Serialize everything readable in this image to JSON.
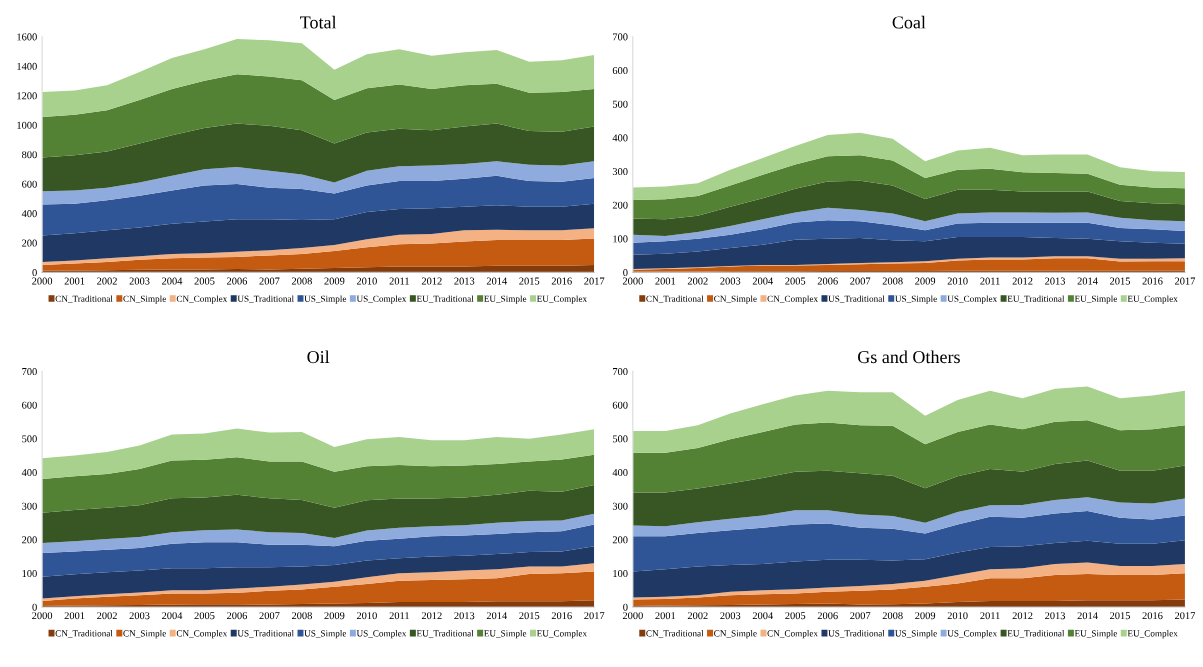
{
  "chart_data": [
    {
      "type": "area",
      "title": "Total",
      "stacked": true,
      "legend": "bottom",
      "grid": false,
      "categories": [
        "2000",
        "2001",
        "2002",
        "2003",
        "2004",
        "2005",
        "2006",
        "2007",
        "2008",
        "2009",
        "2010",
        "2011",
        "2012",
        "2013",
        "2014",
        "2015",
        "2016",
        "2017"
      ],
      "ylim": [
        0,
        1600
      ],
      "yticks": [
        0,
        200,
        400,
        600,
        800,
        1000,
        1200,
        1400,
        1600
      ],
      "series": [
        {
          "name": "CN_Traditional",
          "color": "#843c0c",
          "values": [
            10,
            12,
            15,
            18,
            20,
            20,
            22,
            20,
            25,
            30,
            35,
            40,
            40,
            40,
            45,
            45,
            45,
            50
          ]
        },
        {
          "name": "CN_Simple",
          "color": "#c55a11",
          "values": [
            40,
            48,
            55,
            67,
            75,
            80,
            83,
            95,
            100,
            115,
            135,
            150,
            155,
            170,
            175,
            175,
            175,
            180
          ]
        },
        {
          "name": "CN_Complex",
          "color": "#f4b183",
          "values": [
            20,
            20,
            25,
            25,
            30,
            30,
            35,
            35,
            40,
            40,
            55,
            65,
            65,
            75,
            70,
            65,
            65,
            70
          ]
        },
        {
          "name": "US_Traditional",
          "color": "#203864",
          "values": [
            180,
            185,
            190,
            195,
            205,
            215,
            220,
            210,
            190,
            175,
            185,
            175,
            175,
            160,
            165,
            160,
            160,
            165
          ]
        },
        {
          "name": "US_Simple",
          "color": "#2f5597",
          "values": [
            210,
            200,
            205,
            215,
            225,
            245,
            240,
            215,
            210,
            175,
            180,
            190,
            185,
            190,
            200,
            175,
            170,
            175
          ]
        },
        {
          "name": "US_Complex",
          "color": "#8faadc",
          "values": [
            90,
            90,
            85,
            90,
            100,
            110,
            115,
            115,
            100,
            75,
            100,
            100,
            105,
            100,
            100,
            110,
            110,
            115
          ]
        },
        {
          "name": "EU_Traditional",
          "color": "#375623",
          "values": [
            230,
            240,
            245,
            265,
            275,
            280,
            295,
            305,
            300,
            265,
            260,
            255,
            240,
            255,
            255,
            230,
            230,
            235
          ]
        },
        {
          "name": "EU_Simple",
          "color": "#548235",
          "values": [
            275,
            275,
            280,
            295,
            315,
            320,
            335,
            335,
            340,
            295,
            300,
            300,
            280,
            280,
            270,
            260,
            270,
            255
          ]
        },
        {
          "name": "EU_Complex",
          "color": "#a9d18e",
          "values": [
            170,
            165,
            170,
            190,
            210,
            215,
            240,
            245,
            250,
            205,
            230,
            240,
            225,
            225,
            230,
            210,
            215,
            230
          ]
        }
      ]
    },
    {
      "type": "area",
      "title": "Coal",
      "stacked": true,
      "legend": "bottom",
      "grid": false,
      "categories": [
        "2000",
        "2001",
        "2002",
        "2003",
        "2004",
        "2005",
        "2006",
        "2007",
        "2008",
        "2009",
        "2010",
        "2011",
        "2012",
        "2013",
        "2014",
        "2015",
        "2016",
        "2017"
      ],
      "ylim": [
        0,
        700
      ],
      "yticks": [
        0,
        100,
        200,
        300,
        400,
        500,
        600,
        700
      ],
      "series": [
        {
          "name": "CN_Traditional",
          "color": "#843c0c",
          "values": [
            2,
            2,
            2,
            3,
            3,
            3,
            4,
            4,
            4,
            4,
            5,
            5,
            5,
            5,
            5,
            5,
            5,
            5
          ]
        },
        {
          "name": "CN_Simple",
          "color": "#c55a11",
          "values": [
            6,
            8,
            11,
            14,
            17,
            17,
            18,
            20,
            22,
            24,
            30,
            33,
            33,
            37,
            37,
            27,
            28,
            28
          ]
        },
        {
          "name": "CN_Complex",
          "color": "#f4b183",
          "values": [
            2,
            2,
            2,
            2,
            2,
            2,
            3,
            4,
            4,
            5,
            5,
            6,
            6,
            6,
            6,
            8,
            7,
            9
          ]
        },
        {
          "name": "US_Traditional",
          "color": "#203864",
          "values": [
            42,
            43,
            47,
            53,
            60,
            75,
            75,
            74,
            65,
            59,
            65,
            61,
            61,
            54,
            52,
            52,
            48,
            43
          ]
        },
        {
          "name": "US_Simple",
          "color": "#2f5597",
          "values": [
            36,
            37,
            38,
            40,
            46,
            51,
            55,
            50,
            45,
            33,
            40,
            42,
            42,
            45,
            47,
            40,
            40,
            38
          ]
        },
        {
          "name": "US_Complex",
          "color": "#8faadc",
          "values": [
            24,
            16,
            20,
            26,
            30,
            30,
            37,
            33,
            35,
            27,
            30,
            31,
            31,
            30,
            31,
            30,
            27,
            29
          ]
        },
        {
          "name": "EU_Traditional",
          "color": "#375623",
          "values": [
            48,
            50,
            48,
            57,
            62,
            70,
            78,
            87,
            83,
            66,
            70,
            67,
            62,
            63,
            62,
            50,
            50,
            50
          ]
        },
        {
          "name": "EU_Simple",
          "color": "#548235",
          "values": [
            55,
            59,
            59,
            63,
            70,
            72,
            75,
            76,
            74,
            62,
            60,
            63,
            57,
            55,
            53,
            48,
            47,
            48
          ]
        },
        {
          "name": "EU_Complex",
          "color": "#a9d18e",
          "values": [
            37,
            38,
            38,
            47,
            50,
            55,
            63,
            67,
            65,
            50,
            57,
            62,
            51,
            55,
            57,
            52,
            48,
            48
          ]
        }
      ]
    },
    {
      "type": "area",
      "title": "Oil",
      "stacked": true,
      "legend": "bottom",
      "grid": false,
      "categories": [
        "2000",
        "2001",
        "2002",
        "2003",
        "2004",
        "2005",
        "2006",
        "2007",
        "2008",
        "2009",
        "2010",
        "2011",
        "2012",
        "2013",
        "2014",
        "2015",
        "2016",
        "2017"
      ],
      "ylim": [
        0,
        700
      ],
      "yticks": [
        0,
        100,
        200,
        300,
        400,
        500,
        600,
        700
      ],
      "series": [
        {
          "name": "CN_Traditional",
          "color": "#843c0c",
          "values": [
            3,
            4,
            5,
            6,
            7,
            8,
            8,
            7,
            9,
            10,
            12,
            15,
            15,
            15,
            17,
            17,
            17,
            20
          ]
        },
        {
          "name": "CN_Simple",
          "color": "#c55a11",
          "values": [
            15,
            21,
            25,
            29,
            33,
            32,
            34,
            41,
            43,
            50,
            56,
            63,
            65,
            67,
            68,
            81,
            83,
            85
          ]
        },
        {
          "name": "CN_Complex",
          "color": "#f4b183",
          "values": [
            7,
            7,
            8,
            8,
            10,
            10,
            13,
            12,
            15,
            15,
            20,
            22,
            23,
            26,
            27,
            22,
            20,
            25
          ]
        },
        {
          "name": "US_Traditional",
          "color": "#203864",
          "values": [
            65,
            65,
            65,
            65,
            65,
            65,
            63,
            58,
            53,
            50,
            50,
            45,
            47,
            44,
            45,
            43,
            45,
            50
          ]
        },
        {
          "name": "US_Simple",
          "color": "#2f5597",
          "values": [
            70,
            68,
            67,
            67,
            73,
            77,
            74,
            67,
            65,
            55,
            59,
            58,
            60,
            60,
            60,
            59,
            60,
            65
          ]
        },
        {
          "name": "US_Complex",
          "color": "#8faadc",
          "values": [
            30,
            30,
            32,
            33,
            34,
            36,
            38,
            37,
            35,
            25,
            30,
            32,
            30,
            31,
            33,
            33,
            32,
            32
          ]
        },
        {
          "name": "EU_Traditional",
          "color": "#375623",
          "values": [
            90,
            93,
            93,
            94,
            101,
            97,
            103,
            101,
            98,
            90,
            90,
            87,
            82,
            82,
            83,
            90,
            85,
            85
          ]
        },
        {
          "name": "EU_Simple",
          "color": "#548235",
          "values": [
            100,
            100,
            100,
            108,
            112,
            112,
            112,
            109,
            114,
            107,
            101,
            100,
            96,
            95,
            92,
            87,
            96,
            90
          ]
        },
        {
          "name": "EU_Complex",
          "color": "#a9d18e",
          "values": [
            62,
            62,
            65,
            70,
            77,
            78,
            85,
            86,
            88,
            73,
            80,
            83,
            77,
            75,
            80,
            68,
            74,
            76
          ]
        }
      ]
    },
    {
      "type": "area",
      "title": "Gs and Others",
      "stacked": true,
      "legend": "bottom",
      "grid": false,
      "categories": [
        "2000",
        "2001",
        "2002",
        "2003",
        "2004",
        "2005",
        "2006",
        "2007",
        "2008",
        "2009",
        "2010",
        "2011",
        "2012",
        "2013",
        "2014",
        "2015",
        "2016",
        "2017"
      ],
      "ylim": [
        0,
        700
      ],
      "yticks": [
        0,
        100,
        200,
        300,
        400,
        500,
        600,
        700
      ],
      "series": [
        {
          "name": "CN_Traditional",
          "color": "#843c0c",
          "values": [
            3,
            4,
            5,
            6,
            7,
            9,
            10,
            7,
            8,
            10,
            15,
            18,
            18,
            18,
            20,
            20,
            20,
            22
          ]
        },
        {
          "name": "CN_Simple",
          "color": "#c55a11",
          "values": [
            19,
            20,
            23,
            29,
            31,
            31,
            35,
            41,
            44,
            50,
            55,
            67,
            67,
            77,
            78,
            75,
            75,
            78
          ]
        },
        {
          "name": "CN_Complex",
          "color": "#f4b183",
          "values": [
            6,
            6,
            7,
            10,
            12,
            13,
            13,
            14,
            16,
            18,
            25,
            27,
            30,
            33,
            34,
            27,
            27,
            28
          ]
        },
        {
          "name": "US_Traditional",
          "color": "#203864",
          "values": [
            77,
            82,
            85,
            80,
            78,
            82,
            82,
            78,
            70,
            64,
            67,
            66,
            65,
            62,
            65,
            66,
            66,
            70
          ]
        },
        {
          "name": "US_Simple",
          "color": "#2f5597",
          "values": [
            105,
            98,
            100,
            103,
            107,
            110,
            108,
            95,
            94,
            76,
            83,
            90,
            85,
            88,
            88,
            77,
            72,
            74
          ]
        },
        {
          "name": "US_Complex",
          "color": "#8faadc",
          "values": [
            32,
            30,
            32,
            34,
            37,
            42,
            39,
            40,
            38,
            32,
            37,
            34,
            38,
            40,
            41,
            45,
            47,
            50
          ]
        },
        {
          "name": "EU_Traditional",
          "color": "#375623",
          "values": [
            98,
            100,
            100,
            105,
            111,
            115,
            118,
            122,
            120,
            103,
            106,
            108,
            99,
            107,
            109,
            95,
            98,
            98
          ]
        },
        {
          "name": "EU_Simple",
          "color": "#548235",
          "values": [
            118,
            118,
            120,
            131,
            137,
            140,
            143,
            143,
            148,
            130,
            132,
            132,
            126,
            125,
            120,
            120,
            123,
            120
          ]
        },
        {
          "name": "EU_Complex",
          "color": "#a9d18e",
          "values": [
            65,
            65,
            68,
            77,
            82,
            86,
            94,
            98,
            100,
            85,
            95,
            100,
            92,
            98,
            100,
            95,
            100,
            102
          ]
        }
      ]
    }
  ]
}
